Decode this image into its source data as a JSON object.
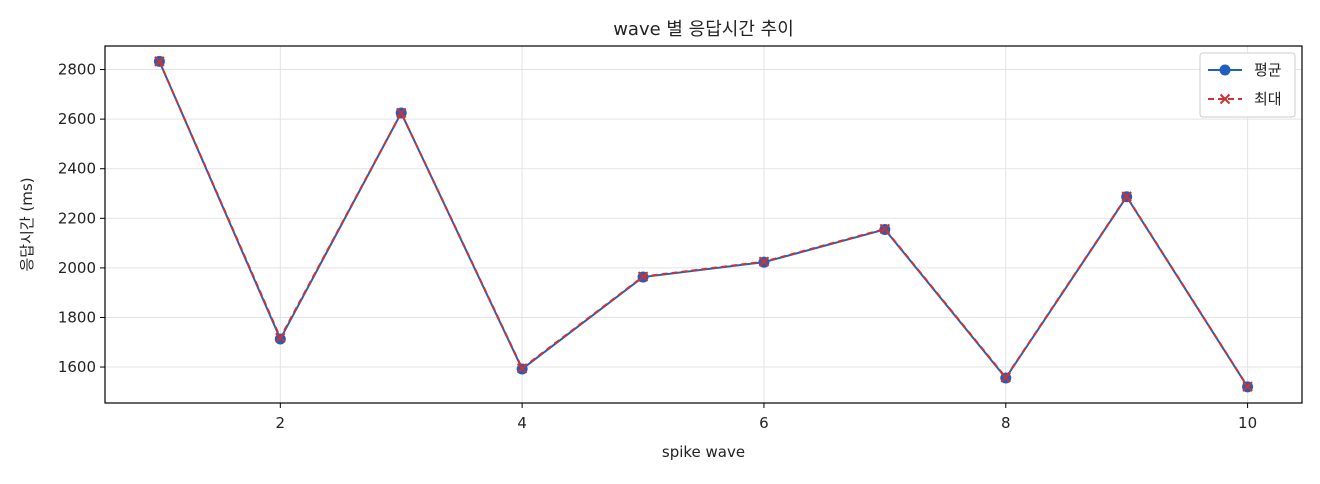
{
  "chart_data": {
    "type": "line",
    "title": "wave 별 응답시간 추이",
    "xlabel": "spike wave",
    "ylabel": "응답시간 (ms)",
    "x": [
      1,
      2,
      3,
      4,
      5,
      6,
      7,
      8,
      9,
      10
    ],
    "xlim": [
      0.55,
      10.45
    ],
    "ylim": [
      1455,
      2895
    ],
    "xticks": [
      2,
      4,
      6,
      8,
      10
    ],
    "yticks": [
      1600,
      1800,
      2000,
      2200,
      2400,
      2600,
      2800
    ],
    "grid": true,
    "legend_position": "top-right",
    "series": [
      {
        "name": "평균",
        "values": [
          2833,
          1713,
          2625,
          1592,
          1963,
          2023,
          2155,
          1556,
          2287,
          1520
        ],
        "color": "#1f5fbf",
        "marker": "circle",
        "line_style": "solid"
      },
      {
        "name": "최대",
        "values": [
          2833,
          1718,
          2625,
          1595,
          1965,
          2025,
          2157,
          1558,
          2288,
          1521
        ],
        "color": "#cc3333",
        "marker": "x",
        "line_style": "dashed"
      }
    ]
  }
}
